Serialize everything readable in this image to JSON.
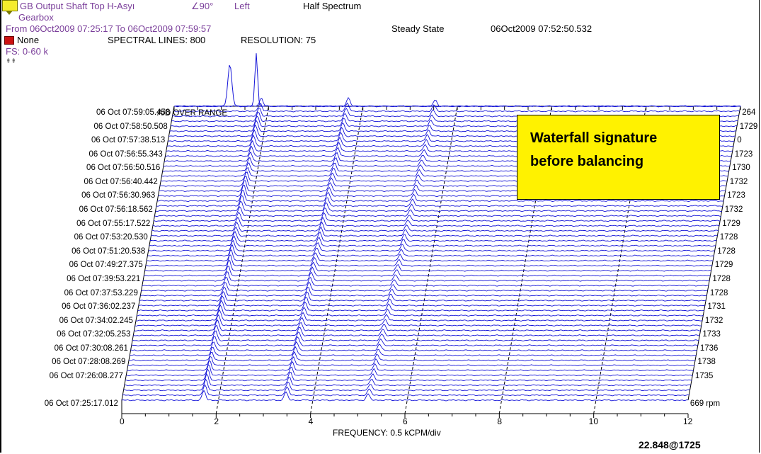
{
  "header": {
    "point_name": "GB Output Shaft Top H-Asyı",
    "angle": "∠90°",
    "side": "Left",
    "spectrum_mode": "Half Spectrum",
    "machine": "Gearbox",
    "time_range": "From 06Oct2009 07:25:17 To 06Oct2009 07:59:57",
    "state": "Steady State",
    "timestamp": "06Oct2009 07:52:50.532",
    "filter": "None",
    "spectral_lines": "SPECTRAL LINES: 800",
    "resolution": "RESOLUTION: 75",
    "full_scale": "FS: 0-60 k",
    "overload": "A/D OVER RANGE",
    "x_axis_label": "FREQUENCY: 0.5 kCPM/div",
    "readout": "22.848@1725"
  },
  "callout": {
    "line1": "Waterfall signature",
    "line2": "before balancing",
    "color": "#fff200"
  },
  "colors": {
    "trace": "#1515d8",
    "header_purple": "#7a3e9a"
  },
  "chart_data": {
    "type": "line",
    "subtype": "waterfall",
    "xlabel": "FREQUENCY: 0.5 kCPM/div",
    "xlim": [
      0,
      12
    ],
    "x_ticks": [
      "0",
      "2",
      "4",
      "6",
      "8",
      "10",
      "12"
    ],
    "time_labels": [
      "06 Oct 07:59:05.458",
      "06 Oct 07:58:50.508",
      "06 Oct 07:57:38.513",
      "06 Oct 07:56:55.343",
      "06 Oct 07:56:50.516",
      "06 Oct 07:56:40.442",
      "06 Oct 07:56:30.963",
      "06 Oct 07:56:18.562",
      "06 Oct 07:55:17.522",
      "06 Oct 07:53:20.530",
      "06 Oct 07:51:20.538",
      "06 Oct 07:49:27.375",
      "06 Oct 07:39:53.221",
      "06 Oct 07:37:53.229",
      "06 Oct 07:36:02.237",
      "06 Oct 07:34:02.245",
      "06 Oct 07:32:05.253",
      "06 Oct 07:30:08.261",
      "06 Oct 07:28:08.269",
      "06 Oct 07:26:08.277",
      "06 Oct 07:25:17.012"
    ],
    "rpm_labels": [
      "264",
      "1729",
      "0",
      "1723",
      "1730",
      "1732",
      "1723",
      "1732",
      "1729",
      "1728",
      "1728",
      "1729",
      "1728",
      "1728",
      "1731",
      "1732",
      "1733",
      "1736",
      "1738",
      "1735",
      "669 rpm"
    ],
    "peak_harmonics": [
      1,
      2,
      3
    ],
    "peak_frequency_kcpm": [
      1.74,
      3.48,
      5.22
    ],
    "traces": 60
  }
}
